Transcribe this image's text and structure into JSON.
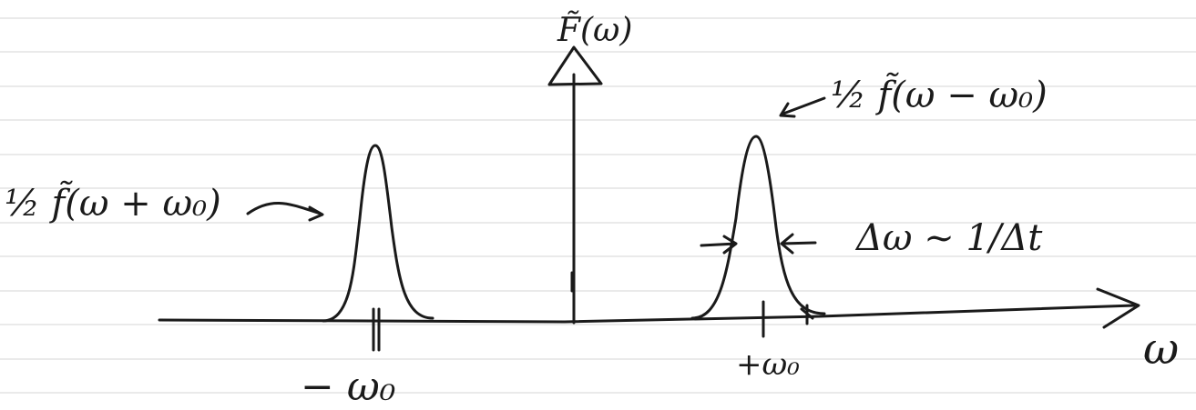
{
  "labels": {
    "vertical_axis": "F̃(ω)",
    "right_peak": "½ f̃(ω − ω₀)",
    "left_peak": "½ f̃(ω + ω₀)",
    "width": "Δω ~ 1/Δt",
    "horizontal_axis": "ω",
    "left_tick": "− ω₀",
    "right_tick": "+ω₀"
  }
}
